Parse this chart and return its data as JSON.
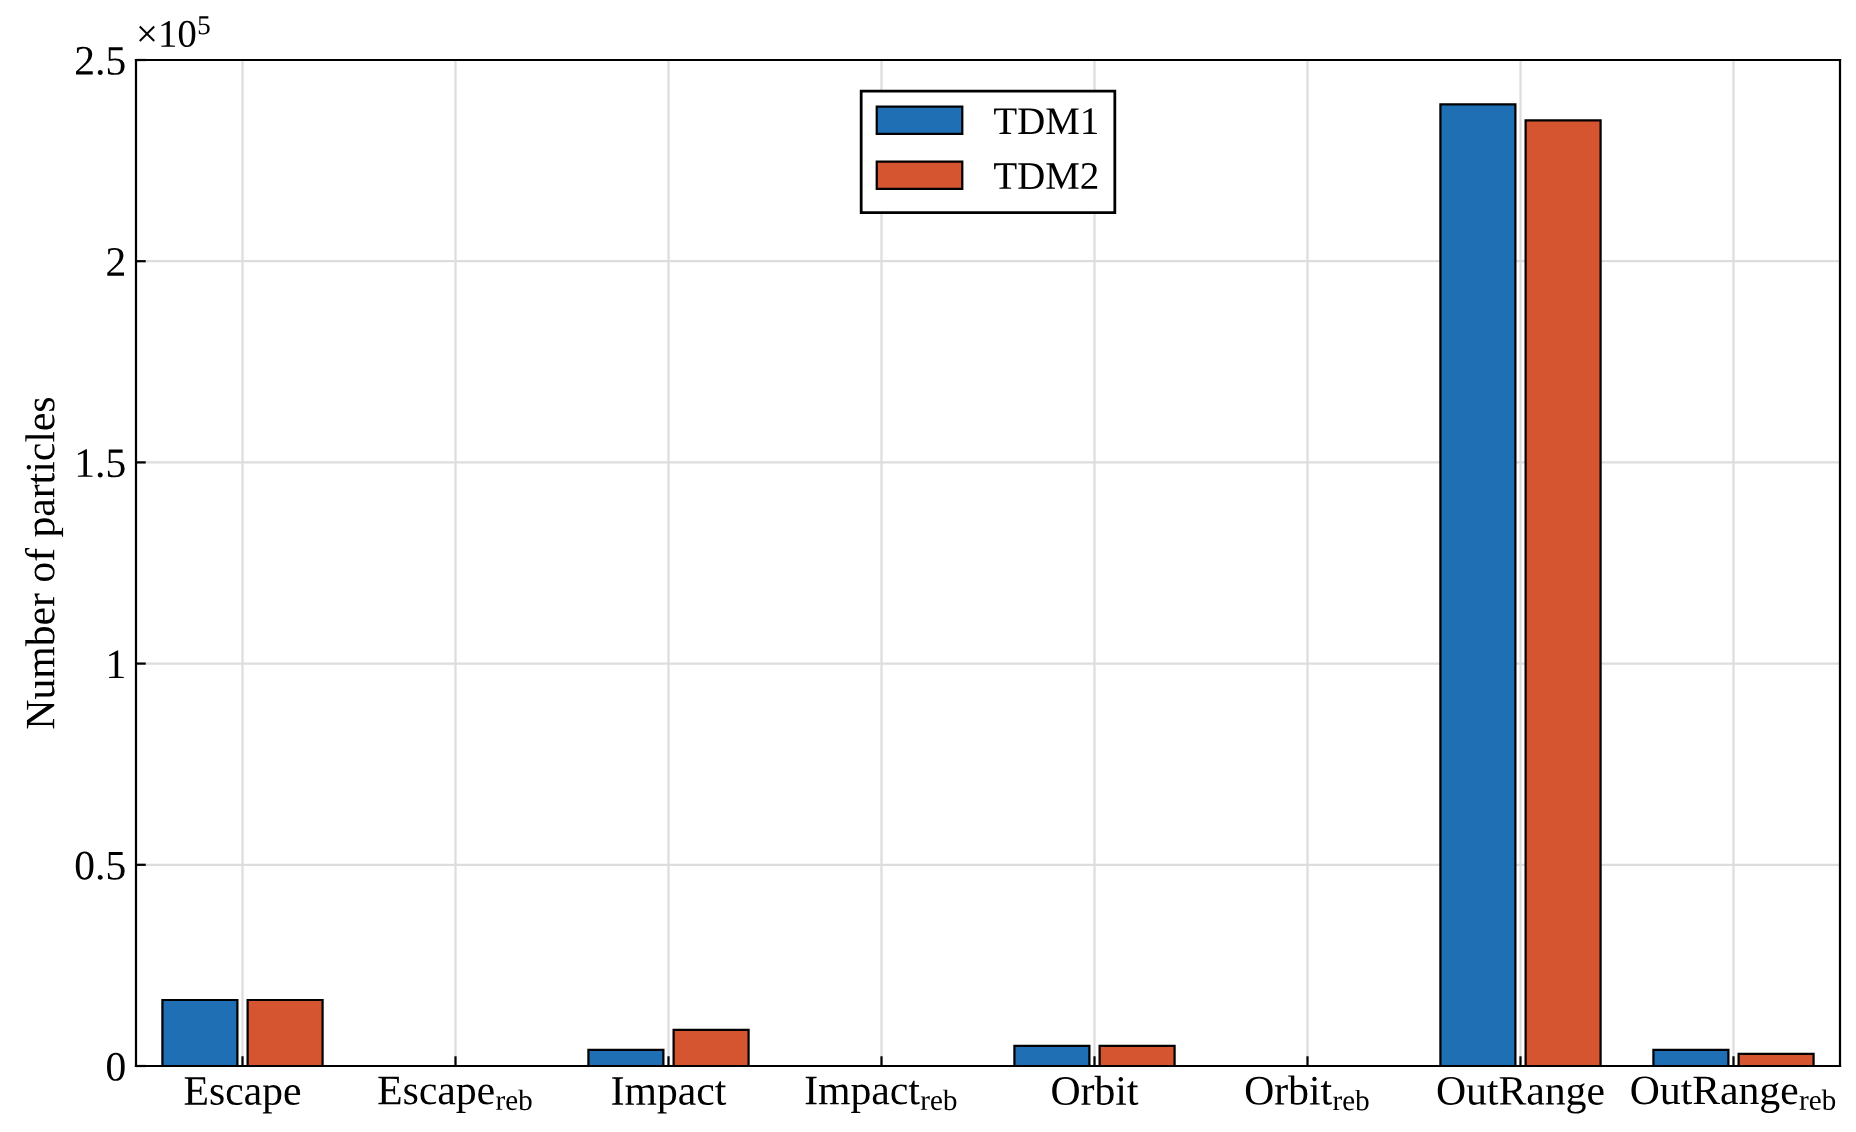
{
  "chart_data": {
    "type": "bar",
    "ylabel": "Number of particles",
    "categories": [
      "Escape",
      "Escape$_{reb}$",
      "Impact",
      "Impact$_{reb}$",
      "Orbit",
      "Orbit$_{reb}$",
      "OutRange",
      "OutRange$_{reb}$"
    ],
    "series": [
      {
        "name": "TDM1",
        "color": "#1f6fb5",
        "values": [
          0.164,
          0,
          0.04,
          0,
          0.05,
          0,
          2.39,
          0.04
        ]
      },
      {
        "name": "TDM2",
        "color": "#d45530",
        "values": [
          0.164,
          0,
          0.09,
          0,
          0.05,
          0,
          2.35,
          0.03
        ]
      }
    ],
    "ylim": [
      0,
      2.5
    ],
    "yticks": [
      0,
      0.5,
      1,
      1.5,
      2,
      2.5
    ],
    "annotations": [
      "×10$^{5}$"
    ],
    "grid": true,
    "legend": "top"
  }
}
